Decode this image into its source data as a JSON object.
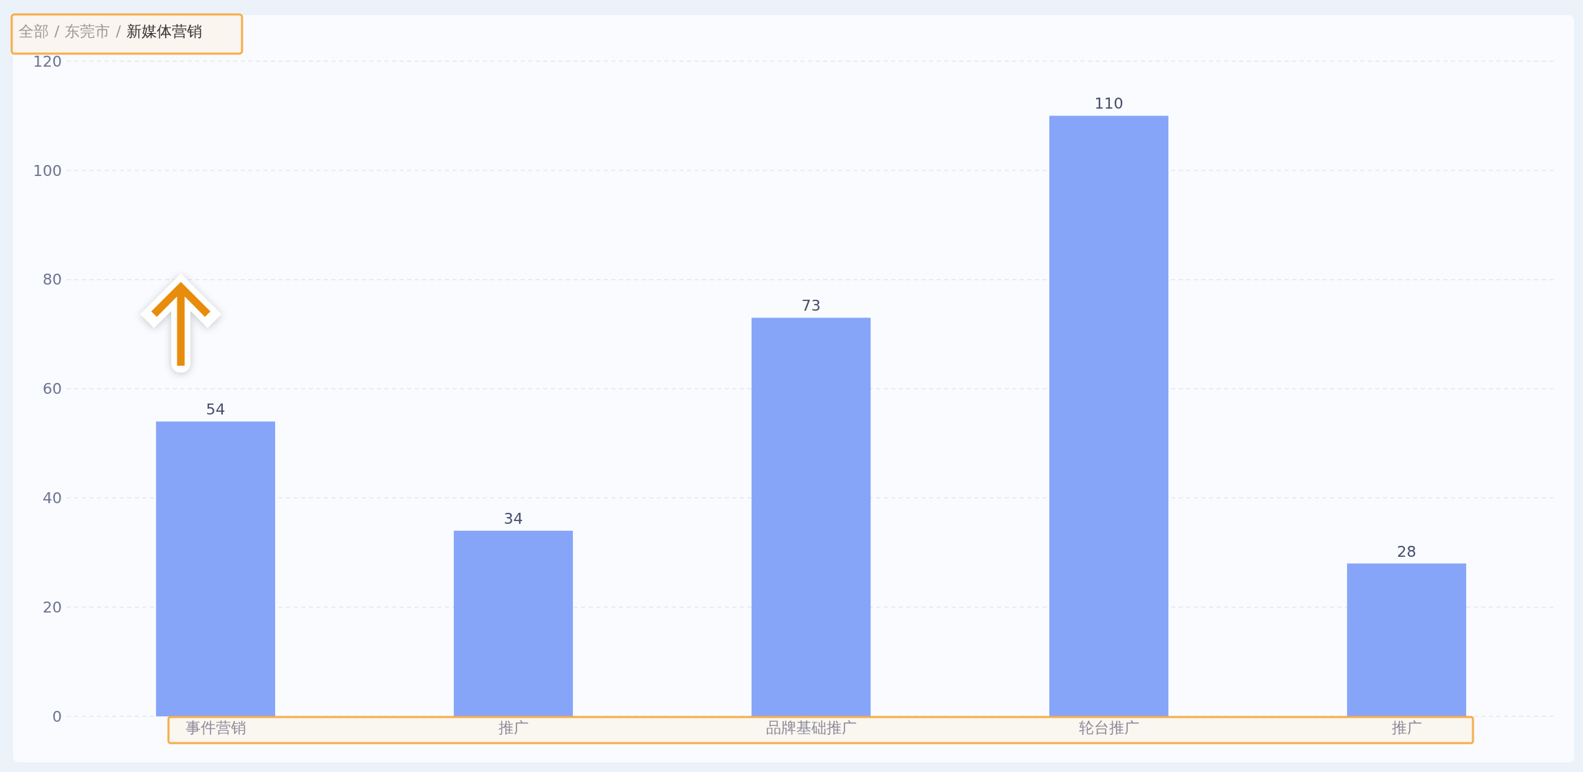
{
  "chart_data": {
    "type": "bar",
    "title": "全部 / 东莞市 / 新媒体营销",
    "categories": [
      "事件营销",
      "推广",
      "品牌基础推广",
      "轮台推广",
      "推广"
    ],
    "values": [
      54,
      34,
      73,
      110,
      28
    ],
    "color": "#87a5f8",
    "ylim": [
      0,
      120
    ],
    "yticks": [
      0,
      20,
      40,
      60,
      80,
      100,
      120
    ],
    "grid": "y",
    "data_labels": true
  }
}
